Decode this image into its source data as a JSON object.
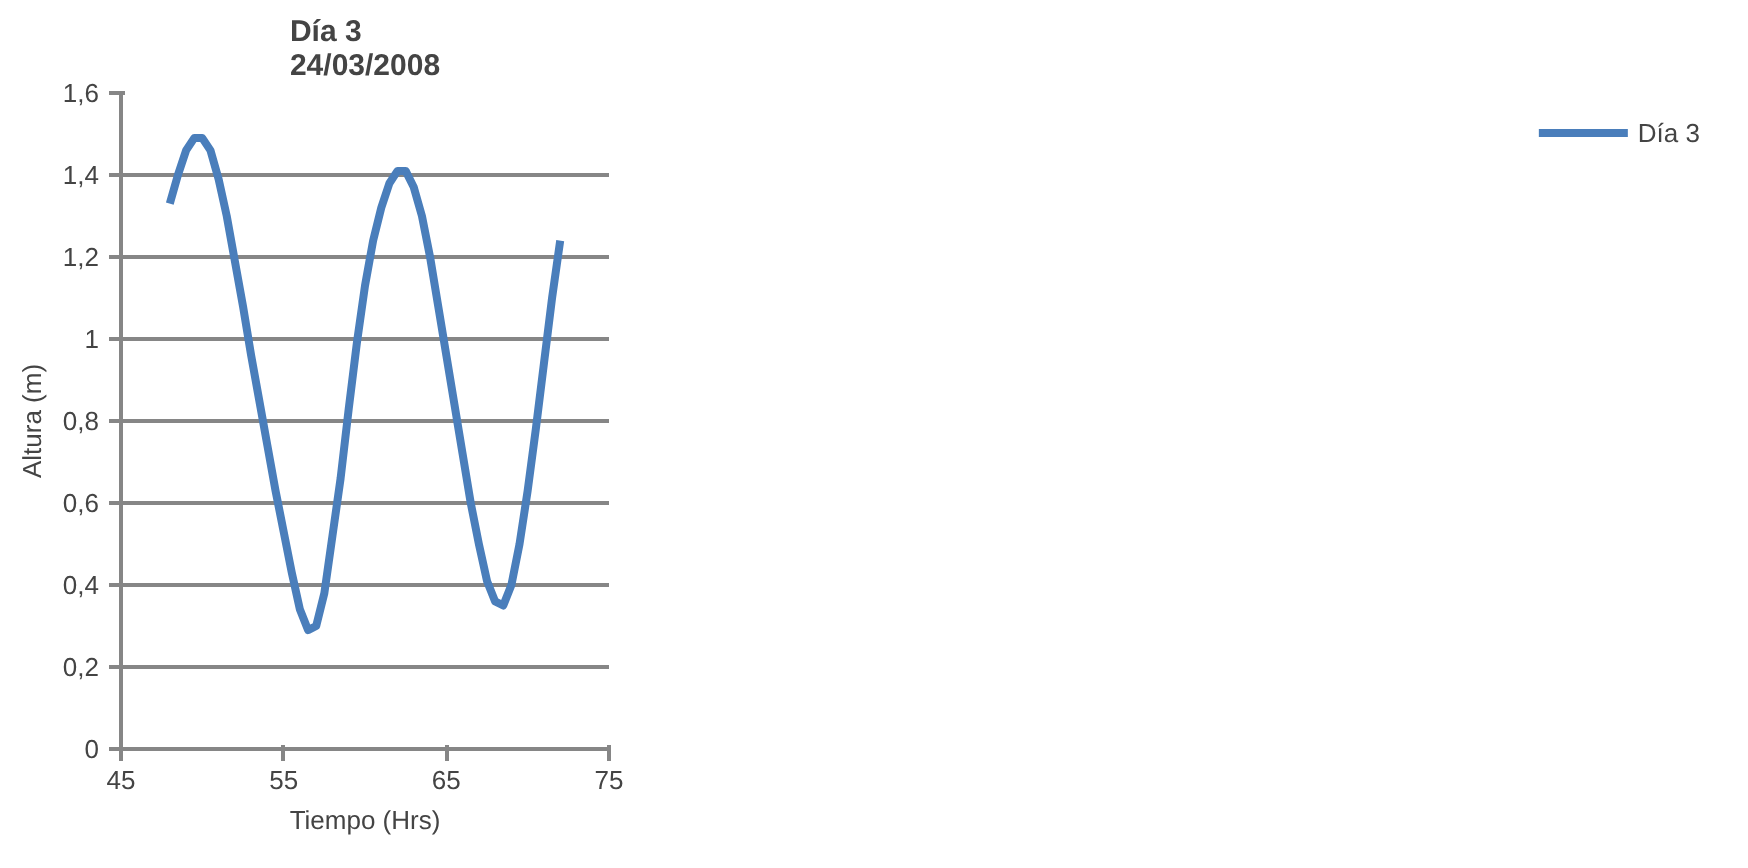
{
  "chart_data": {
    "type": "line",
    "title": "Día 3\n24/03/2008",
    "xlabel": "Tiempo (Hrs)",
    "ylabel": "Altura (m)",
    "x": [
      48,
      48.5,
      49,
      49.5,
      50,
      50.5,
      51,
      51.5,
      52,
      52.5,
      53,
      53.5,
      54,
      54.5,
      55,
      55.5,
      56,
      56.5,
      57,
      57.5,
      58,
      58.5,
      59,
      59.5,
      60,
      60.5,
      61,
      61.5,
      62,
      62.5,
      63,
      63.5,
      64,
      64.5,
      65,
      65.5,
      66,
      66.5,
      67,
      67.5,
      68,
      68.5,
      69,
      69.5,
      70,
      70.5,
      71,
      71.5,
      72
    ],
    "series": [
      {
        "name": "Día 3",
        "color": "#4a7ebb",
        "values": [
          1.33,
          1.4,
          1.46,
          1.49,
          1.49,
          1.46,
          1.39,
          1.3,
          1.19,
          1.08,
          0.96,
          0.85,
          0.74,
          0.63,
          0.53,
          0.43,
          0.34,
          0.29,
          0.3,
          0.38,
          0.52,
          0.66,
          0.83,
          0.99,
          1.13,
          1.24,
          1.32,
          1.38,
          1.41,
          1.41,
          1.37,
          1.3,
          1.2,
          1.08,
          0.96,
          0.84,
          0.72,
          0.6,
          0.5,
          0.41,
          0.36,
          0.35,
          0.4,
          0.5,
          0.63,
          0.78,
          0.94,
          1.1,
          1.24
        ]
      }
    ],
    "xlim": [
      45,
      75
    ],
    "xticks": [
      45,
      55,
      65,
      75
    ],
    "ylim": [
      0,
      1.6
    ],
    "yticks": [
      0,
      {
        "value": 0.2,
        "label": "0,2"
      },
      {
        "value": 0.4,
        "label": "0,4"
      },
      {
        "value": 0.6,
        "label": "0,6"
      },
      {
        "value": 0.8,
        "label": "0,8"
      },
      1,
      {
        "value": 1.2,
        "label": "1,2"
      },
      {
        "value": 1.4,
        "label": "1,4"
      },
      {
        "value": 1.6,
        "label": "1,6"
      }
    ],
    "grid": "y",
    "legend": "right",
    "marker": "none",
    "line_style": "solid"
  }
}
